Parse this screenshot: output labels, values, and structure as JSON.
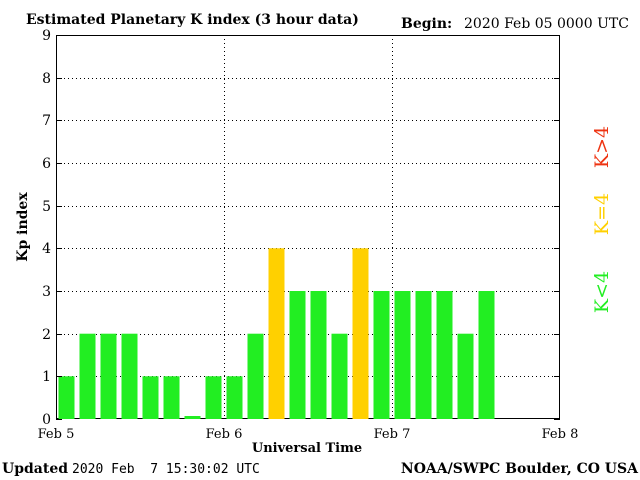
{
  "chart_data": {
    "type": "bar",
    "title": "Estimated Planetary K index (3 hour data)",
    "begin_label": "Begin:",
    "begin_value": "2020 Feb 05 0000 UTC",
    "xlabel": "Universal Time",
    "ylabel": "Kp index",
    "ylim": [
      0,
      9
    ],
    "y_ticks": [
      "0",
      "1",
      "2",
      "3",
      "4",
      "5",
      "6",
      "7",
      "8",
      "9"
    ],
    "x_ticks": [
      "Feb 5",
      "Feb 6",
      "Feb 7",
      "Feb 8"
    ],
    "x_range_days": [
      0,
      3
    ],
    "bar_interval_hours": 3,
    "grid": "dotted",
    "values": [
      1,
      2,
      2,
      2,
      1,
      1,
      0.07,
      1,
      1,
      2,
      4,
      3,
      3,
      2,
      4,
      3,
      3,
      3,
      3,
      2,
      3
    ],
    "legend": [
      {
        "text": "K<4",
        "color": "#22ee22"
      },
      {
        "text": "K=4",
        "color": "#ffd000"
      },
      {
        "text": "K>4",
        "color": "#ee3311"
      }
    ],
    "colors": {
      "below4": "#22ee22",
      "equal4": "#ffd000",
      "above4": "#ee3311"
    }
  },
  "footer": {
    "updated_label": "Updated",
    "updated_value": "2020 Feb  7 15:30:02 UTC",
    "source": "NOAA/SWPC Boulder, CO USA"
  }
}
